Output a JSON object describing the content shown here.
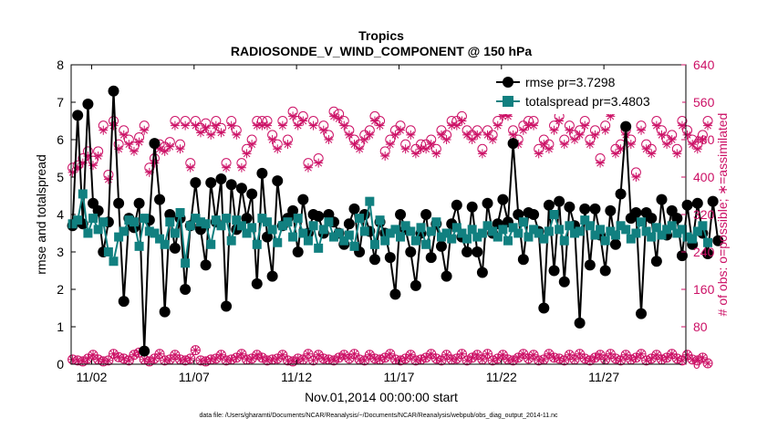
{
  "chart_data": {
    "type": "line",
    "title": "Tropics",
    "subtitle": "RADIOSONDE_V_WIND_COMPONENT @ 150 hPa",
    "xlabel": "Nov.01,2014 00:00:00 start",
    "ylabel_left": "rmse and totalspread",
    "ylabel_right": "# of obs: o=possible; ∗=assimilated",
    "footnote": "data file: /Users/gharamti/Documents/NCAR/Reanalysis/~/Documents/NCAR/Reanalysis/webpub/obs_diag_output_2014-11.nc",
    "xlim": [
      1,
      31
    ],
    "ylim_left": [
      0,
      8
    ],
    "ylim_right": [
      0,
      640
    ],
    "x_ticks": [
      2,
      7,
      12,
      17,
      22,
      27
    ],
    "x_tick_labels": [
      "11/02",
      "11/07",
      "11/12",
      "11/17",
      "11/22",
      "11/27"
    ],
    "y_ticks_left": [
      "0",
      "1",
      "2",
      "3",
      "4",
      "5",
      "6",
      "7",
      "8"
    ],
    "y_ticks_right": [
      "0",
      "80",
      "160",
      "240",
      "320",
      "400",
      "480",
      "560",
      "640"
    ],
    "colors": {
      "rmse": "#000000",
      "spread": "#118080",
      "obs": "#cc1166",
      "axis": "#000000"
    },
    "legend": [
      {
        "label": "rmse pr=3.7298",
        "series": "rmse"
      },
      {
        "label": "totalspread pr=3.4803",
        "series": "spread"
      }
    ],
    "series": [
      {
        "name": "rmse",
        "values": [
          3.7,
          6.65,
          3.75,
          6.95,
          4.3,
          4.1,
          3.0,
          3.8,
          7.3,
          4.3,
          1.68,
          3.9,
          3.65,
          4.3,
          0.35,
          3.85,
          5.9,
          4.4,
          1.4,
          4.0,
          3.1,
          3.9,
          2.0,
          3.7,
          4.85,
          3.6,
          2.65,
          4.85,
          3.8,
          4.95,
          1.55,
          4.8,
          3.6,
          4.7,
          3.9,
          4.55,
          2.15,
          5.1,
          3.4,
          2.35,
          4.9,
          3.7,
          3.9,
          4.1,
          3.0,
          4.4,
          3.5,
          4.0,
          3.95,
          3.5,
          4.0,
          3.8,
          3.5,
          3.2,
          3.75,
          4.15,
          3.0,
          4.0,
          3.55,
          2.8,
          3.8,
          3.5,
          2.85,
          1.87,
          4.0,
          3.6,
          3.0,
          2.1,
          3.5,
          4.0,
          2.85,
          3.75,
          3.15,
          2.35,
          3.75,
          4.25,
          3.4,
          3.0,
          4.2,
          3.0,
          2.45,
          4.3,
          3.5,
          3.75,
          4.4,
          3.8,
          5.9,
          4.0,
          2.8,
          4.05,
          4.0,
          3.55,
          1.5,
          4.25,
          2.5,
          4.35,
          2.2,
          4.2,
          3.7,
          1.1,
          4.15,
          2.65,
          4.15,
          3.45,
          2.5,
          4.1,
          3.2,
          4.55,
          6.35,
          3.9,
          4.05,
          1.35,
          4.05,
          3.9,
          2.75,
          4.4,
          3.45,
          4.1,
          3.9,
          2.9,
          4.25,
          3.2,
          4.3,
          3.5,
          2.95,
          4.35,
          3.3
        ],
        "marker": "filled circle"
      },
      {
        "name": "totalspread",
        "values": [
          3.75,
          3.85,
          4.55,
          3.5,
          3.9,
          3.6,
          3.8,
          3.0,
          2.75,
          3.4,
          3.55,
          3.85,
          3.8,
          3.15,
          3.9,
          3.55,
          3.5,
          3.35,
          3.2,
          3.8,
          3.5,
          4.05,
          2.7,
          3.7,
          3.9,
          3.8,
          3.75,
          3.2,
          3.85,
          3.7,
          3.9,
          3.3,
          3.85,
          3.7,
          3.5,
          3.65,
          3.2,
          3.9,
          3.8,
          3.6,
          3.25,
          3.7,
          3.8,
          3.4,
          3.9,
          3.5,
          3.3,
          3.7,
          3.1,
          3.6,
          3.8,
          3.4,
          3.5,
          3.3,
          3.45,
          3.15,
          3.9,
          3.55,
          4.35,
          3.2,
          3.85,
          3.3,
          3.5,
          3.6,
          3.4,
          3.7,
          3.55,
          3.3,
          3.65,
          3.2,
          3.55,
          3.8,
          3.4,
          3.5,
          3.35,
          3.65,
          3.5,
          3.35,
          3.6,
          3.4,
          3.5,
          3.7,
          3.55,
          3.4,
          3.6,
          3.3,
          3.65,
          3.5,
          3.8,
          3.4,
          3.6,
          3.5,
          3.35,
          3.55,
          4.0,
          3.6,
          3.3,
          3.7,
          3.5,
          3.55,
          3.85,
          3.7,
          3.45,
          3.6,
          3.3,
          3.55,
          3.45,
          3.7,
          3.6,
          3.35,
          3.5,
          3.8,
          3.55,
          3.4,
          3.65,
          3.45,
          3.6,
          3.7,
          3.5,
          3.6,
          3.4,
          3.35,
          3.55,
          3.7,
          3.25
        ],
        "marker": "filled square"
      },
      {
        "name": "obs_possible_high",
        "values": [
          420,
          425,
          440,
          455,
          435,
          455,
          510,
          405,
          520,
          470,
          500,
          480,
          465,
          485,
          510,
          420,
          440,
          470,
          465,
          475,
          520,
          470,
          520,
          430,
          520,
          505,
          515,
          500,
          520,
          505,
          430,
          520,
          500,
          430,
          460,
          480,
          520,
          520,
          520,
          490,
          470,
          520,
          480,
          540,
          520,
          530,
          430,
          520,
          440,
          510,
          490,
          540,
          535,
          520,
          500,
          480,
          470,
          490,
          500,
          530,
          520,
          455,
          480,
          500,
          510,
          470,
          500,
          460,
          470,
          470,
          480,
          460,
          500,
          490,
          520,
          520,
          530,
          500,
          490,
          500,
          460,
          500,
          490,
          520,
          540,
          540,
          500,
          480,
          510,
          520,
          520,
          460,
          480,
          470,
          510,
          530,
          480,
          510,
          490,
          500,
          520,
          480,
          500,
          440,
          510,
          540,
          460,
          470,
          500,
          480,
          410,
          510,
          470,
          460,
          520,
          500,
          480,
          490,
          460,
          520,
          500,
          480,
          470,
          490,
          520
        ],
        "marker": "open circle"
      },
      {
        "name": "obs_assimilated_high",
        "values": [
          410,
          420,
          430,
          445,
          425,
          445,
          500,
          395,
          510,
          460,
          490,
          470,
          455,
          475,
          500,
          410,
          430,
          460,
          455,
          465,
          510,
          460,
          510,
          420,
          510,
          495,
          505,
          490,
          510,
          495,
          420,
          510,
          490,
          420,
          450,
          470,
          510,
          510,
          510,
          480,
          460,
          510,
          470,
          530,
          510,
          520,
          420,
          510,
          430,
          500,
          480,
          530,
          525,
          510,
          490,
          470,
          460,
          480,
          490,
          520,
          510,
          445,
          470,
          490,
          500,
          460,
          490,
          450,
          460,
          460,
          470,
          450,
          490,
          480,
          510,
          510,
          520,
          490,
          480,
          490,
          450,
          490,
          480,
          510,
          530,
          530,
          490,
          470,
          500,
          510,
          510,
          450,
          470,
          460,
          500,
          520,
          470,
          500,
          480,
          490,
          510,
          470,
          490,
          430,
          500,
          530,
          450,
          460,
          490,
          470,
          400,
          500,
          460,
          450,
          510,
          490,
          470,
          480,
          450,
          510,
          490,
          470,
          460,
          480,
          510
        ],
        "marker": "asterisk"
      },
      {
        "name": "obs_possible_low",
        "values": [
          10,
          8,
          6,
          12,
          20,
          10,
          6,
          8,
          22,
          15,
          12,
          8,
          20,
          25,
          10,
          6,
          12,
          22,
          8,
          10,
          20,
          10,
          8,
          12,
          30,
          8,
          6,
          10,
          12,
          20,
          8,
          10,
          14,
          22,
          10,
          12,
          20,
          14,
          8,
          10,
          12,
          20,
          8,
          6,
          12,
          10,
          22,
          8,
          20,
          12,
          10,
          8,
          14,
          20,
          12,
          22,
          10,
          8,
          20,
          12,
          10,
          14,
          22,
          10,
          8,
          12,
          20,
          8,
          10,
          14,
          22,
          12,
          8,
          20,
          10,
          12,
          22,
          8,
          14,
          20,
          10,
          22,
          8,
          12,
          20,
          10,
          8,
          14,
          22,
          12,
          20,
          8,
          10,
          22,
          14,
          12,
          8,
          20,
          10,
          22,
          12,
          8,
          14,
          20,
          10,
          22,
          12,
          8,
          20,
          10,
          14,
          22,
          8,
          12,
          20,
          10,
          14,
          22,
          12,
          8,
          20,
          10,
          8,
          14,
          2
        ],
        "marker": "open circle"
      },
      {
        "name": "obs_assimilated_low",
        "values": [
          10,
          8,
          6,
          12,
          20,
          10,
          6,
          8,
          22,
          15,
          12,
          8,
          20,
          25,
          10,
          6,
          12,
          22,
          8,
          10,
          20,
          10,
          8,
          12,
          30,
          8,
          6,
          10,
          12,
          20,
          8,
          10,
          14,
          22,
          10,
          12,
          20,
          14,
          8,
          10,
          12,
          20,
          8,
          6,
          12,
          10,
          22,
          8,
          20,
          12,
          10,
          8,
          14,
          20,
          12,
          22,
          10,
          8,
          20,
          12,
          10,
          14,
          22,
          10,
          8,
          12,
          20,
          8,
          10,
          14,
          22,
          12,
          8,
          20,
          10,
          12,
          22,
          8,
          14,
          20,
          10,
          22,
          8,
          12,
          20,
          10,
          8,
          14,
          22,
          12,
          20,
          8,
          10,
          22,
          14,
          12,
          8,
          20,
          10,
          22,
          12,
          8,
          14,
          20,
          10,
          22,
          12,
          8,
          20,
          10,
          14,
          22,
          8,
          12,
          20,
          10,
          14,
          22,
          12,
          8,
          20,
          10,
          8,
          14,
          2
        ],
        "marker": "asterisk"
      }
    ]
  }
}
